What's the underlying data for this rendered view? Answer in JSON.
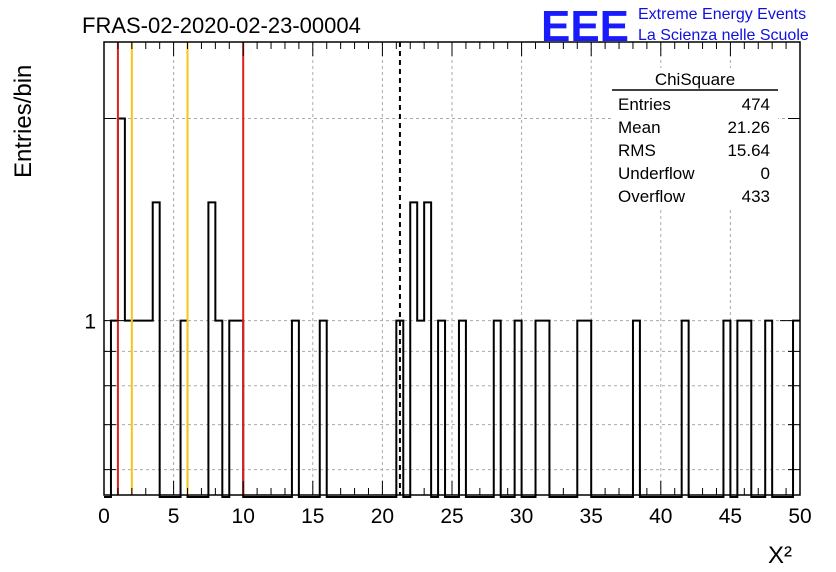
{
  "header": {
    "title": "FRAS-02-2020-02-23-00004",
    "logo_mark": "EEE",
    "logo_line1": "Extreme Energy Events",
    "logo_line2": "La Scienza nelle Scuole"
  },
  "stats_box": {
    "title": "ChiSquare",
    "rows": [
      {
        "label": "Entries",
        "value": "474"
      },
      {
        "label": "Mean",
        "value": "21.26"
      },
      {
        "label": "RMS",
        "value": "15.64"
      },
      {
        "label": "Underflow",
        "value": "0"
      },
      {
        "label": "Overflow",
        "value": "433"
      }
    ]
  },
  "colors": {
    "red_line": "#dd2020",
    "yellow_line": "#f5c518",
    "histogram": "#000000",
    "logo": "#1a1aff"
  },
  "chart_data": {
    "type": "bar",
    "title": "FRAS-02-2020-02-23-00004",
    "xlabel": "X²",
    "ylabel": "Entries/bin",
    "xlim": [
      0,
      50
    ],
    "ylim": [
      0.55,
      2.6
    ],
    "y_scale": "log",
    "grid": true,
    "x_ticks": [
      0,
      5,
      10,
      15,
      20,
      25,
      30,
      35,
      40,
      45,
      50
    ],
    "y_tick_labels": [
      {
        "value": 1,
        "label": "1"
      }
    ],
    "bin_width": 0.5,
    "bins": [
      {
        "x": 0.5,
        "count": 1
      },
      {
        "x": 1.0,
        "count": 2
      },
      {
        "x": 1.5,
        "count": 1
      },
      {
        "x": 2.0,
        "count": 1
      },
      {
        "x": 2.5,
        "count": 1
      },
      {
        "x": 3.0,
        "count": 1
      },
      {
        "x": 3.5,
        "count": 1.5
      },
      {
        "x": 5.5,
        "count": 1
      },
      {
        "x": 7.5,
        "count": 1.5
      },
      {
        "x": 8.0,
        "count": 1
      },
      {
        "x": 9.0,
        "count": 1
      },
      {
        "x": 9.5,
        "count": 1
      },
      {
        "x": 13.5,
        "count": 1
      },
      {
        "x": 15.5,
        "count": 1
      },
      {
        "x": 21.0,
        "count": 1
      },
      {
        "x": 22.0,
        "count": 1.5
      },
      {
        "x": 22.5,
        "count": 1
      },
      {
        "x": 23.0,
        "count": 1.5
      },
      {
        "x": 24.0,
        "count": 1
      },
      {
        "x": 25.5,
        "count": 1
      },
      {
        "x": 28.0,
        "count": 1
      },
      {
        "x": 29.5,
        "count": 1
      },
      {
        "x": 31.0,
        "count": 1
      },
      {
        "x": 31.5,
        "count": 1
      },
      {
        "x": 34.0,
        "count": 1
      },
      {
        "x": 34.5,
        "count": 1
      },
      {
        "x": 38.0,
        "count": 1
      },
      {
        "x": 41.5,
        "count": 1
      },
      {
        "x": 44.5,
        "count": 1
      },
      {
        "x": 45.5,
        "count": 1
      },
      {
        "x": 46.0,
        "count": 1
      },
      {
        "x": 47.5,
        "count": 1
      },
      {
        "x": 49.5,
        "count": 1
      }
    ],
    "vertical_lines": [
      {
        "x": 1.0,
        "color": "red"
      },
      {
        "x": 2.0,
        "color": "yellow"
      },
      {
        "x": 6.0,
        "color": "yellow"
      },
      {
        "x": 10.0,
        "color": "red"
      },
      {
        "x": 21.26,
        "color": "black",
        "style": "dashed"
      }
    ]
  }
}
